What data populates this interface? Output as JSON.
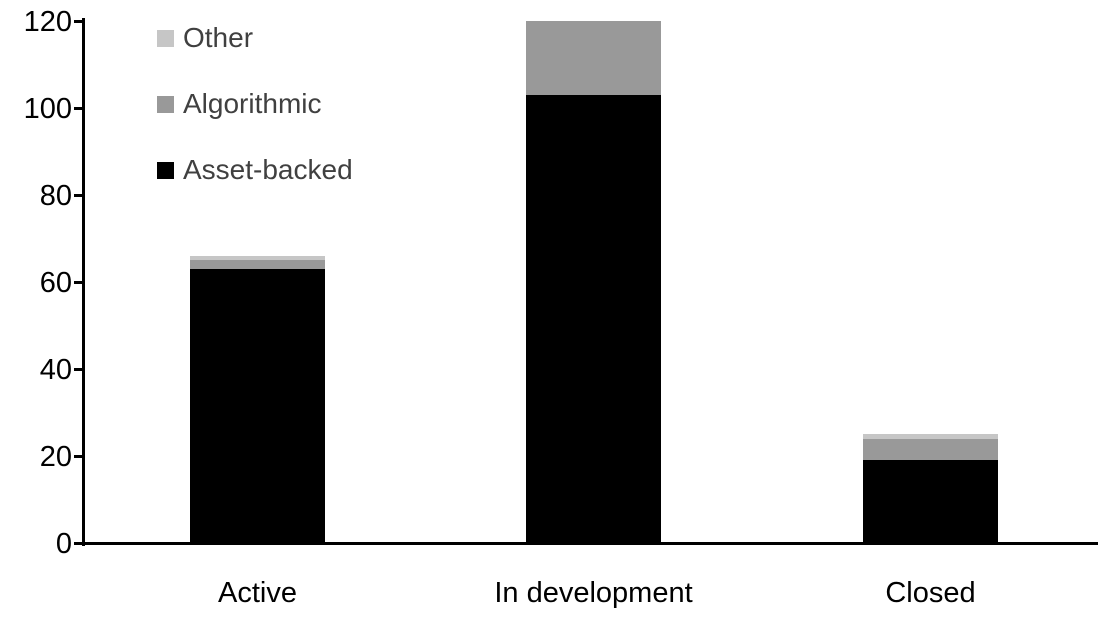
{
  "chart_data": {
    "type": "bar",
    "stacked": true,
    "title": "",
    "xlabel": "",
    "ylabel": "",
    "categories": [
      "Active",
      "In development",
      "Closed"
    ],
    "series": [
      {
        "name": "Asset-backed",
        "color": "#000000",
        "values": [
          63,
          103,
          19
        ]
      },
      {
        "name": "Algorithmic",
        "color": "#999999",
        "values": [
          2,
          17,
          5
        ]
      },
      {
        "name": "Other",
        "color": "#c6c6c6",
        "values": [
          1,
          0,
          1
        ]
      }
    ],
    "totals": [
      66,
      120,
      25
    ],
    "ylim": [
      0,
      120
    ],
    "yticks": [
      0,
      20,
      40,
      60,
      80,
      100,
      120
    ],
    "grid": false,
    "legend_position": "upper-left-inside",
    "legend_order_top_to_bottom": [
      "Other",
      "Algorithmic",
      "Asset-backed"
    ],
    "axis_color": "#000000",
    "tick_label_color": "#000000",
    "category_label_color": "#000000",
    "legend_text_color": "#404040",
    "background_color": "#ffffff"
  }
}
